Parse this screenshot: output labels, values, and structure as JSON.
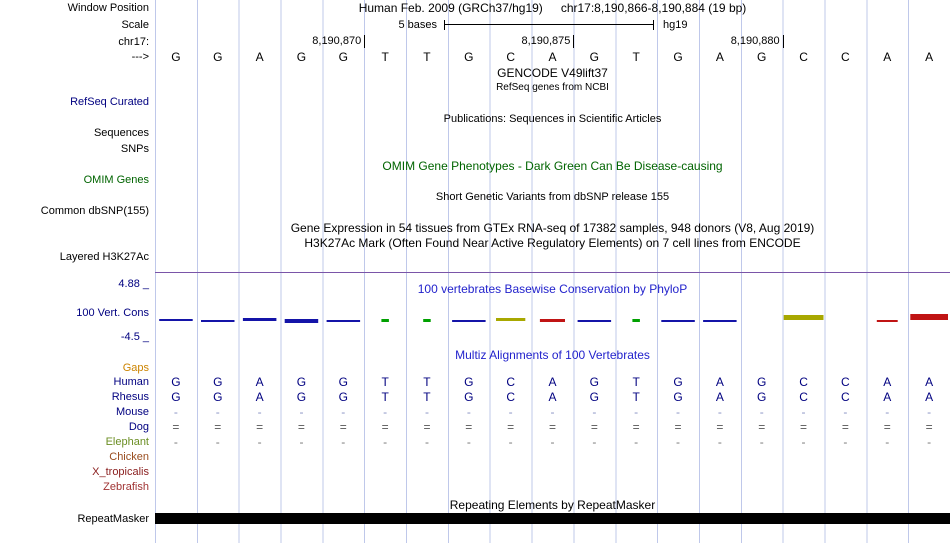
{
  "colors": {
    "guideline": "#bfc8ea",
    "track_label_blue": "#000080",
    "track_title_blue": "#2222cc",
    "omim_green": "#006400",
    "gaps_orange": "#cc8400",
    "h3k27ac_baseline_purple": "#7a55a8",
    "repeat_bar_black": "#000000",
    "wiggle_blue": "#1414a8",
    "wiggle_green": "#00a000",
    "wiggle_olive": "#a8a800",
    "wiggle_red": "#c01414"
  },
  "header": {
    "row1_left": "Window Position",
    "assembly": "Human Feb. 2009 (GRCh37/hg19)",
    "position": "chr17:8,190,866-8,190,884 (19 bp)",
    "scale_left": "Scale",
    "scale_value": "5 bases",
    "scale_genome": "hg19",
    "chrom": "chr17:",
    "strand": "--->",
    "coords": [
      {
        "label": "8,190,870",
        "base_index": 5
      },
      {
        "label": "8,190,875",
        "base_index": 10
      },
      {
        "label": "8,190,880",
        "base_index": 15
      }
    ]
  },
  "sequence": "GGAGGTTGCAGTGAGCCAA",
  "tracks_text": {
    "gencode_title": "GENCODE V49lift37",
    "refseq_sub": "RefSeq genes from NCBI",
    "refseq_label": "RefSeq Curated",
    "publications": "Publications: Sequences in Scientific Articles",
    "sequences_label": "Sequences",
    "snps_label": "SNPs",
    "omim_title": "OMIM Gene Phenotypes - Dark Green Can Be Disease-causing",
    "omim_label": "OMIM Genes",
    "dbsnp_title": "Short Genetic Variants from dbSNP release 155",
    "dbsnp_label": "Common dbSNP(155)",
    "gtex_title": "Gene Expression in 54 tissues from GTEx RNA-seq of 17382 samples, 948 donors (V8, Aug 2019)",
    "h3k27ac_title": "H3K27Ac Mark (Often Found Near Active Regulatory Elements) on 7 cell lines from ENCODE",
    "h3k27ac_label": "Layered H3K27Ac"
  },
  "conservation": {
    "title": "100 vertebrates Basewise Conservation by PhyloP",
    "track_label": "100 Vert. Cons",
    "max_label": "4.88 _",
    "min_label": "-4.5 _",
    "marks": [
      {
        "c": "#1414a8",
        "w": 0.8,
        "up": 3,
        "h": 2
      },
      {
        "c": "#1414a8",
        "w": 0.8,
        "up": 2,
        "h": 2
      },
      {
        "c": "#1414a8",
        "w": 0.8,
        "up": 4,
        "h": 3
      },
      {
        "c": "#1414a8",
        "w": 0.8,
        "up": 3,
        "h": 4
      },
      {
        "c": "#1414a8",
        "w": 0.8,
        "up": 2,
        "h": 2
      },
      {
        "c": "#00a000",
        "w": 0.18,
        "up": 3,
        "h": 3
      },
      {
        "c": "#00a000",
        "w": 0.18,
        "up": 3,
        "h": 3
      },
      {
        "c": "#1414a8",
        "w": 0.8,
        "up": 2,
        "h": 2
      },
      {
        "c": "#a8a800",
        "w": 0.7,
        "up": 4,
        "h": 3
      },
      {
        "c": "#c01414",
        "w": 0.6,
        "up": 3,
        "h": 3
      },
      {
        "c": "#1414a8",
        "w": 0.8,
        "up": 2,
        "h": 2
      },
      {
        "c": "#00a000",
        "w": 0.18,
        "up": 3,
        "h": 3
      },
      {
        "c": "#1414a8",
        "w": 0.8,
        "up": 2,
        "h": 2
      },
      {
        "c": "#1414a8",
        "w": 0.8,
        "up": 2,
        "h": 2
      },
      null,
      {
        "c": "#a8a800",
        "w": 0.95,
        "up": 7,
        "h": 5
      },
      null,
      {
        "c": "#c01414",
        "w": 0.5,
        "up": 2,
        "h": 2
      },
      {
        "c": "#c01414",
        "w": 0.9,
        "up": 8,
        "h": 6
      }
    ]
  },
  "alignment": {
    "title": "Multiz Alignments of 100 Vertebrates",
    "gaps_label": "Gaps",
    "rows": [
      {
        "name": "Human",
        "label_color": "#000080",
        "cell_color": "#000080",
        "cells": "GGAGGTTGCAGTGAGCCAA"
      },
      {
        "name": "Rhesus",
        "label_color": "#000080",
        "cell_color": "#000080",
        "cells": "GGAGGTTGCAGTGAGCCAA"
      },
      {
        "name": "Mouse",
        "label_color": "#000080",
        "cell_color": "#8a93c4",
        "cells": "-------------------"
      },
      {
        "name": "Dog",
        "label_color": "#000080",
        "cell_color": "#555555",
        "cells": "==================="
      },
      {
        "name": "Elephant",
        "label_color": "#6b8e23",
        "cell_color": "#777777",
        "cells": "-------------------"
      },
      {
        "name": "Chicken",
        "label_color": "#994d1f",
        "cell_color": "",
        "cells": ""
      },
      {
        "name": "X_tropicalis",
        "label_color": "#8b2020",
        "cell_color": "",
        "cells": ""
      },
      {
        "name": "Zebrafish",
        "label_color": "#a03333",
        "cell_color": "",
        "cells": ""
      }
    ]
  },
  "repeats": {
    "title": "Repeating Elements by RepeatMasker",
    "label": "RepeatMasker"
  }
}
